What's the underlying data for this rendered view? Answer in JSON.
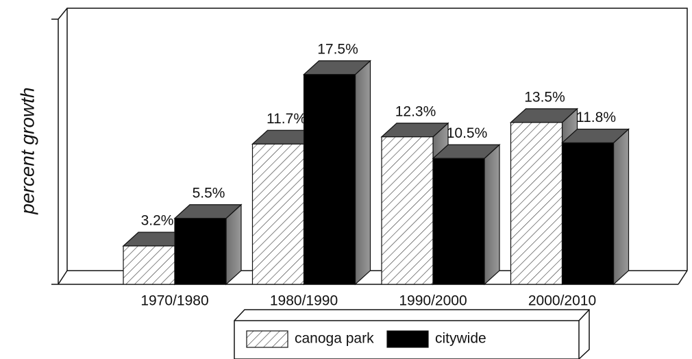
{
  "chart_data": {
    "type": "bar3d",
    "y_label": "percent growth",
    "categories": [
      "1970/1980",
      "1980/1990",
      "1990/2000",
      "2000/2010"
    ],
    "series": [
      {
        "name": "canoga park",
        "color": "#ffffff",
        "hatch": true,
        "values": [
          3.2,
          11.7,
          12.3,
          13.5
        ],
        "value_labels": [
          "3.2%",
          "11.7%",
          "12.3%",
          "13.5%"
        ]
      },
      {
        "name": "citywide",
        "color": "#000000",
        "hatch": false,
        "values": [
          5.5,
          17.5,
          10.5,
          11.8
        ],
        "value_labels": [
          "5.5%",
          "17.5%",
          "10.5%",
          "11.8%"
        ]
      }
    ]
  }
}
